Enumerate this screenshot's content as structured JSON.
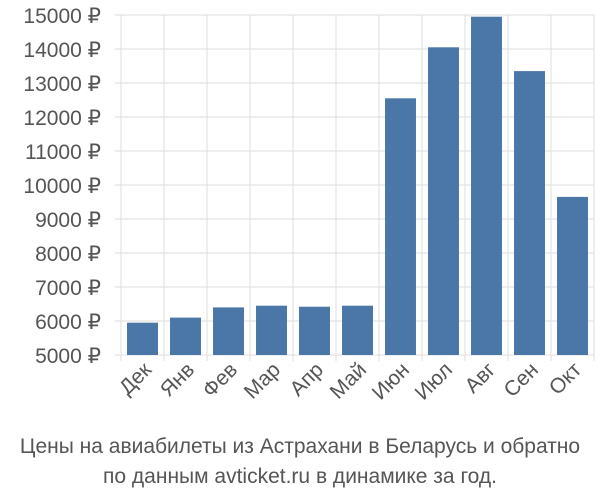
{
  "chart_data": {
    "type": "bar",
    "categories": [
      "Дек",
      "Янв",
      "Фев",
      "Мар",
      "Апр",
      "Май",
      "Июн",
      "Июл",
      "Авг",
      "Сен",
      "Окт"
    ],
    "values": [
      5950,
      6100,
      6400,
      6450,
      6420,
      6450,
      12550,
      14050,
      14950,
      13350,
      9650
    ],
    "ylim": [
      5000,
      15000
    ],
    "yticks": [
      5000,
      6000,
      7000,
      8000,
      9000,
      10000,
      11000,
      12000,
      13000,
      14000,
      15000
    ],
    "ytick_suffix": " ₽",
    "bar_color": "#4a76a8",
    "grid": true,
    "legend": "none"
  },
  "caption": {
    "line1": "Цены на авиабилеты из Астрахани в Беларусь и обратно",
    "line2": "по данным avticket.ru в динамике за год."
  }
}
